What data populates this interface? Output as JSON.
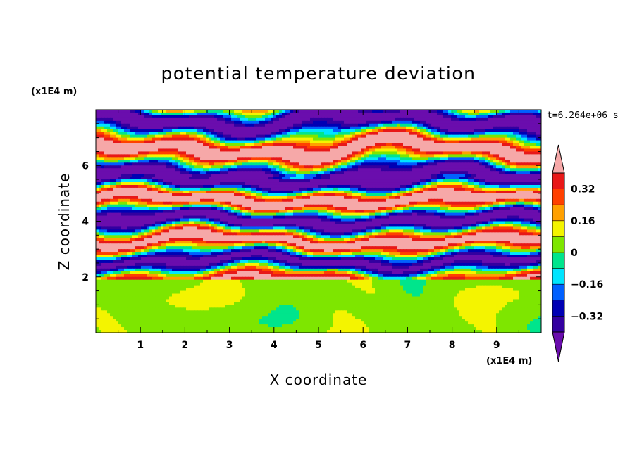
{
  "chart_data": {
    "type": "heatmap",
    "title": "potential temperature deviation",
    "xlabel": "X coordinate",
    "ylabel": "Z coordinate",
    "x_unit": "(x1E4 m)",
    "y_unit": "(x1E4 m)",
    "time_label": "t=6.264e+06 s",
    "xlim": [
      0,
      10
    ],
    "ylim": [
      0,
      8
    ],
    "x_ticks": [
      "1",
      "2",
      "3",
      "4",
      "5",
      "6",
      "7",
      "8",
      "9"
    ],
    "x_tick_values": [
      1,
      2,
      3,
      4,
      5,
      6,
      7,
      8,
      9
    ],
    "y_ticks": [
      "2",
      "4",
      "6"
    ],
    "y_tick_values": [
      2,
      4,
      6
    ],
    "colorbar": {
      "levels": [
        -0.4,
        -0.32,
        -0.24,
        -0.16,
        -0.08,
        0,
        0.08,
        0.16,
        0.24,
        0.32,
        0.4
      ],
      "tick_labels": [
        "0.32",
        "0.16",
        "0",
        "−0.16",
        "−0.32"
      ],
      "tick_values": [
        0.32,
        0.16,
        0,
        -0.16,
        -0.32
      ],
      "colors": [
        "#6a0dad",
        "#3300a0",
        "#0000b4",
        "#0060ff",
        "#00e5ff",
        "#00e58c",
        "#7ee600",
        "#f4f400",
        "#ffa000",
        "#ff4000",
        "#e81818",
        "#f6a8a8"
      ],
      "extend": "both"
    },
    "regions": [
      {
        "z_range": [
          0,
          1.95
        ],
        "description": "mostly near-zero values",
        "dominant_values": [
          0,
          0.08
        ]
      },
      {
        "z_range": [
          1.95,
          5.5
        ],
        "description": "alternating layered bands",
        "dominant_values": [
          -0.4,
          0.4
        ]
      },
      {
        "z_range": [
          5.5,
          8
        ],
        "description": "large-amplitude alternating layers",
        "dominant_values": [
          -0.4,
          0.4
        ]
      }
    ]
  }
}
